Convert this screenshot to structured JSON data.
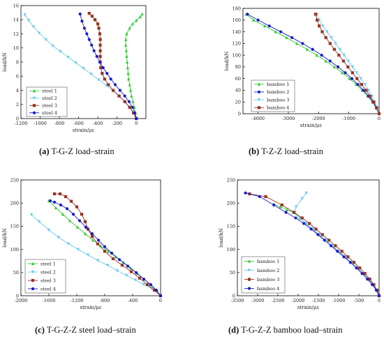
{
  "captions": [
    {
      "tag": "(a)",
      "text": "T-G-Z load–strain"
    },
    {
      "tag": "(b)",
      "text": "T-Z-Z load–strain"
    },
    {
      "tag": "(c)",
      "text": "T-G-Z-Z steel load–strain"
    },
    {
      "tag": "(d)",
      "text": "T-G-Z-Z bamboo load–strain"
    }
  ],
  "colors": {
    "green": "#33cc33",
    "cyan": "#66ccee",
    "darkred": "#993322",
    "navy": "#1a1acc"
  },
  "chart_data": [
    {
      "type": "line",
      "xlabel": "strain/με",
      "ylabel": "load/kN",
      "xlim": [
        -1200,
        100
      ],
      "ylim": [
        0,
        16
      ],
      "xticks": [
        -1200,
        -1000,
        -800,
        -600,
        -400,
        -200,
        0
      ],
      "yticks": [
        0,
        2,
        4,
        6,
        8,
        10,
        12,
        14,
        16
      ],
      "legend_position": "bottom-left",
      "series": [
        {
          "name": "steel 1",
          "color": "#33cc33",
          "marker": "triangle-up",
          "x": [
            0,
            -10,
            -20,
            -35,
            -50,
            -60,
            -70,
            -80,
            -85,
            -90,
            -95,
            -100,
            -105,
            -110,
            -110,
            -100,
            -70,
            -40,
            0,
            40,
            60
          ],
          "y": [
            0,
            0.8,
            1.6,
            2.4,
            3.2,
            4.0,
            4.8,
            5.6,
            6.4,
            7.2,
            8.0,
            8.8,
            9.6,
            10.4,
            11.2,
            12.0,
            12.8,
            13.4,
            13.9,
            14.4,
            14.8
          ]
        },
        {
          "name": "steel 2",
          "color": "#66ccee",
          "marker": "triangle-down",
          "x": [
            0,
            -20,
            -60,
            -110,
            -170,
            -240,
            -310,
            -390,
            -470,
            -550,
            -630,
            -710,
            -790,
            -870,
            -940,
            -1010,
            -1070,
            -1120,
            -1160
          ],
          "y": [
            0,
            0.7,
            1.5,
            2.3,
            3.1,
            3.9,
            4.7,
            5.5,
            6.3,
            7.1,
            7.9,
            8.7,
            9.5,
            10.3,
            11.2,
            12.1,
            13.0,
            13.9,
            14.7
          ]
        },
        {
          "name": "steel 3",
          "color": "#993322",
          "marker": "square",
          "x": [
            0,
            -30,
            -70,
            -120,
            -180,
            -240,
            -290,
            -330,
            -355,
            -370,
            -375,
            -375,
            -375,
            -375,
            -375,
            -380,
            -390,
            -400,
            -430,
            -460,
            -490
          ],
          "y": [
            0,
            0.8,
            1.6,
            2.4,
            3.2,
            4.0,
            4.8,
            5.6,
            6.4,
            7.2,
            8.0,
            8.8,
            9.6,
            10.4,
            11.2,
            12.0,
            12.8,
            13.4,
            14.0,
            14.5,
            14.9
          ]
        },
        {
          "name": "steel 4",
          "color": "#1a1acc",
          "marker": "circle",
          "x": [
            0,
            -15,
            -40,
            -75,
            -120,
            -170,
            -220,
            -265,
            -305,
            -345,
            -380,
            -410,
            -440,
            -465,
            -490,
            -515,
            -540,
            -565,
            -585
          ],
          "y": [
            0,
            0.8,
            1.6,
            2.4,
            3.2,
            4.0,
            4.8,
            5.6,
            6.4,
            7.2,
            8.0,
            8.8,
            9.6,
            10.4,
            11.2,
            12.0,
            12.8,
            13.8,
            14.8
          ]
        }
      ]
    },
    {
      "type": "line",
      "xlabel": "strain/με",
      "ylabel": "load/kN",
      "xlim": [
        -4500,
        0
      ],
      "ylim": [
        0,
        180
      ],
      "xticks": [
        -4000,
        -3000,
        -2000,
        -1000,
        0
      ],
      "yticks": [
        0,
        20,
        40,
        60,
        80,
        100,
        120,
        140,
        160,
        180
      ],
      "legend_position": "bottom-left",
      "series": [
        {
          "name": "bamboo 1",
          "color": "#33cc33",
          "marker": "triangle-up",
          "x": [
            0,
            -100,
            -220,
            -380,
            -560,
            -760,
            -980,
            -1220,
            -1480,
            -1760,
            -2060,
            -2380,
            -2720,
            -3060,
            -3420,
            -3780,
            -4150,
            -4400
          ],
          "y": [
            0,
            10,
            20,
            30,
            40,
            50,
            60,
            70,
            80,
            90,
            100,
            110,
            120,
            130,
            140,
            150,
            160,
            170
          ]
        },
        {
          "name": "bamboo 2",
          "color": "#1a1acc",
          "marker": "circle",
          "x": [
            0,
            -90,
            -200,
            -350,
            -520,
            -700,
            -900,
            -1120,
            -1360,
            -1620,
            -1900,
            -2200,
            -2530,
            -2880,
            -3250,
            -3630,
            -4000,
            -4350
          ],
          "y": [
            0,
            10,
            20,
            30,
            40,
            50,
            60,
            70,
            80,
            90,
            100,
            110,
            120,
            130,
            140,
            150,
            160,
            170
          ]
        },
        {
          "name": "bamboo 3",
          "color": "#66ccee",
          "marker": "triangle-down",
          "x": [
            0,
            -60,
            -140,
            -240,
            -350,
            -470,
            -600,
            -740,
            -880,
            -1020,
            -1160,
            -1300,
            -1440,
            -1580,
            -1720,
            -1860,
            -1980,
            -2050
          ],
          "y": [
            0,
            10,
            20,
            30,
            40,
            50,
            60,
            70,
            80,
            90,
            100,
            110,
            120,
            130,
            140,
            150,
            160,
            170
          ]
        },
        {
          "name": "bamboo 4",
          "color": "#993322",
          "marker": "square",
          "x": [
            0,
            -80,
            -180,
            -300,
            -430,
            -580,
            -730,
            -880,
            -1030,
            -1180,
            -1330,
            -1480,
            -1620,
            -1760,
            -1880,
            -1980,
            -2050,
            -2100
          ],
          "y": [
            0,
            10,
            20,
            30,
            40,
            50,
            60,
            70,
            80,
            90,
            100,
            110,
            120,
            130,
            140,
            150,
            160,
            170
          ]
        }
      ]
    },
    {
      "type": "line",
      "xlabel": "strain/με",
      "ylabel": "load/kN",
      "xlim": [
        -2000,
        0
      ],
      "ylim": [
        0,
        250
      ],
      "xticks": [
        -2000,
        -1600,
        -1200,
        -800,
        -400,
        0
      ],
      "yticks": [
        0,
        50,
        100,
        150,
        200,
        250
      ],
      "legend_position": "bottom-left",
      "series": [
        {
          "name": "steel 1",
          "color": "#33cc33",
          "marker": "triangle-up",
          "x": [
            0,
            -70,
            -150,
            -240,
            -330,
            -430,
            -530,
            -640,
            -750,
            -860,
            -970,
            -1080,
            -1190,
            -1300,
            -1400,
            -1500,
            -1600
          ],
          "y": [
            0,
            12,
            24,
            36,
            48,
            60,
            72,
            84,
            96,
            108,
            120,
            134,
            148,
            162,
            176,
            190,
            205
          ]
        },
        {
          "name": "steel 2",
          "color": "#66ccee",
          "marker": "triangle-down",
          "x": [
            0,
            -50,
            -130,
            -240,
            -360,
            -490,
            -620,
            -760,
            -900,
            -1040,
            -1180,
            -1320,
            -1460,
            -1600,
            -1740,
            -1850
          ],
          "y": [
            0,
            8,
            16,
            24,
            34,
            44,
            54,
            66,
            76,
            88,
            100,
            112,
            126,
            142,
            160,
            175
          ]
        },
        {
          "name": "steel 3",
          "color": "#993322",
          "marker": "square",
          "x": [
            0,
            -90,
            -190,
            -300,
            -420,
            -550,
            -680,
            -800,
            -900,
            -980,
            -1040,
            -1080,
            -1130,
            -1200,
            -1280,
            -1360,
            -1440,
            -1520
          ],
          "y": [
            0,
            12,
            24,
            38,
            52,
            66,
            80,
            96,
            112,
            128,
            144,
            160,
            176,
            192,
            204,
            214,
            220,
            220
          ]
        },
        {
          "name": "steel 4",
          "color": "#1a1acc",
          "marker": "circle",
          "x": [
            0,
            -60,
            -140,
            -240,
            -350,
            -470,
            -590,
            -700,
            -800,
            -890,
            -980,
            -1070,
            -1160,
            -1250,
            -1340,
            -1430,
            -1520,
            -1580
          ],
          "y": [
            0,
            12,
            24,
            36,
            50,
            64,
            78,
            92,
            106,
            120,
            134,
            148,
            162,
            176,
            188,
            196,
            202,
            205
          ]
        }
      ]
    },
    {
      "type": "line",
      "xlabel": "strain/με",
      "ylabel": "load/kN",
      "xlim": [
        -3500,
        0
      ],
      "ylim": [
        0,
        250
      ],
      "xticks": [
        -3500,
        -3000,
        -2500,
        -2000,
        -1500,
        -1000,
        -500,
        0
      ],
      "yticks": [
        0,
        50,
        100,
        150,
        200,
        250
      ],
      "legend_position": "bottom-left",
      "series": [
        {
          "name": "bamboo 1",
          "color": "#33cc33",
          "marker": "triangle-up",
          "x": [
            0,
            -60,
            -150,
            -260,
            -390,
            -530,
            -680,
            -840,
            -1000,
            -1160,
            -1320,
            -1480,
            -1640,
            -1800,
            -1960,
            -2120,
            -2280,
            -2440,
            -2600
          ],
          "y": [
            0,
            12,
            24,
            36,
            48,
            60,
            72,
            84,
            96,
            108,
            120,
            132,
            144,
            156,
            168,
            180,
            186,
            192,
            198
          ]
        },
        {
          "name": "bamboo 2",
          "color": "#66ccee",
          "marker": "triangle-down",
          "x": [
            0,
            -60,
            -150,
            -260,
            -390,
            -530,
            -680,
            -840,
            -1000,
            -1160,
            -1320,
            -1480,
            -1640,
            -1800,
            -1960,
            -2100,
            -2050,
            -1900,
            -1800
          ],
          "y": [
            0,
            12,
            24,
            36,
            48,
            60,
            72,
            84,
            96,
            108,
            120,
            132,
            144,
            156,
            168,
            180,
            192,
            210,
            222
          ]
        },
        {
          "name": "bamboo 3",
          "color": "#993322",
          "marker": "square",
          "x": [
            0,
            -50,
            -130,
            -230,
            -350,
            -480,
            -620,
            -770,
            -920,
            -1080,
            -1240,
            -1400,
            -1560,
            -1720,
            -1900,
            -2100,
            -2400,
            -2800,
            -3200
          ],
          "y": [
            0,
            12,
            24,
            36,
            48,
            60,
            72,
            84,
            96,
            108,
            120,
            132,
            144,
            156,
            168,
            180,
            196,
            214,
            220
          ]
        },
        {
          "name": "bamboo 4",
          "color": "#1a1acc",
          "marker": "circle",
          "x": [
            0,
            -70,
            -170,
            -290,
            -420,
            -560,
            -710,
            -870,
            -1030,
            -1190,
            -1350,
            -1510,
            -1680,
            -1860,
            -2060,
            -2300,
            -2600,
            -2950,
            -3300
          ],
          "y": [
            0,
            12,
            24,
            36,
            48,
            60,
            72,
            84,
            96,
            108,
            120,
            132,
            144,
            156,
            168,
            180,
            196,
            214,
            222
          ]
        }
      ]
    }
  ]
}
